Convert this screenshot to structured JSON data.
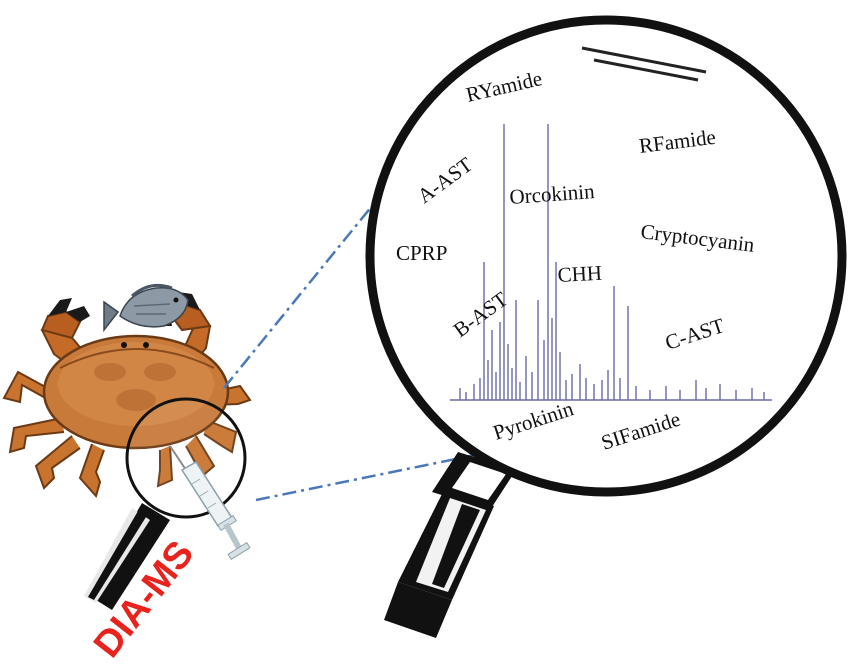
{
  "method_label": "DIA-MS",
  "peptide_families": [
    "RYamide",
    "A-AST",
    "Orcokinin",
    "RFamide",
    "CPRP",
    "Cryptocyanin",
    "CHH",
    "B-AST",
    "C-AST",
    "Pyrokinin",
    "SIFamide"
  ],
  "colors": {
    "method_label": "#e8221c",
    "dashed_connector": "#4a78b8",
    "spectrum": "#6a6aa8",
    "lens_ring": "#111111"
  },
  "icons": [
    "crab-illustration",
    "fish-illustration",
    "syringe-icon",
    "magnifying-glass-icon"
  ]
}
